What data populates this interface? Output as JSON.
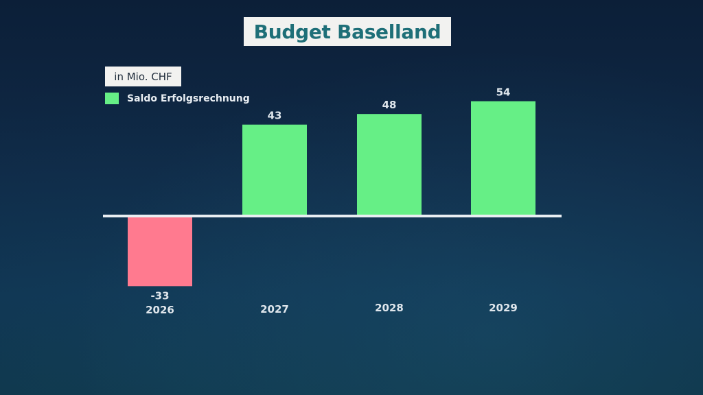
{
  "title": "Budget Baselland",
  "unit": "in Mio. CHF",
  "legend": {
    "label": "Saldo Erfolgsrechnung",
    "color": "#66ef86"
  },
  "colors": {
    "positive": "#66ef86",
    "negative": "#ff7a8f",
    "baseline": "#e9eef2",
    "title": "#1e6f78"
  },
  "chart_data": {
    "type": "bar",
    "categories": [
      "2026",
      "2027",
      "2028",
      "2029"
    ],
    "values": [
      -33,
      43,
      48,
      54
    ],
    "value_labels": [
      "-33",
      "43",
      "48",
      "54"
    ],
    "title": "Budget Baselland",
    "ylabel": "in Mio. CHF",
    "series": [
      {
        "name": "Saldo Erfolgsrechnung",
        "values": [
          -33,
          43,
          48,
          54
        ]
      }
    ],
    "grid": false,
    "legend_position": "top-left"
  }
}
